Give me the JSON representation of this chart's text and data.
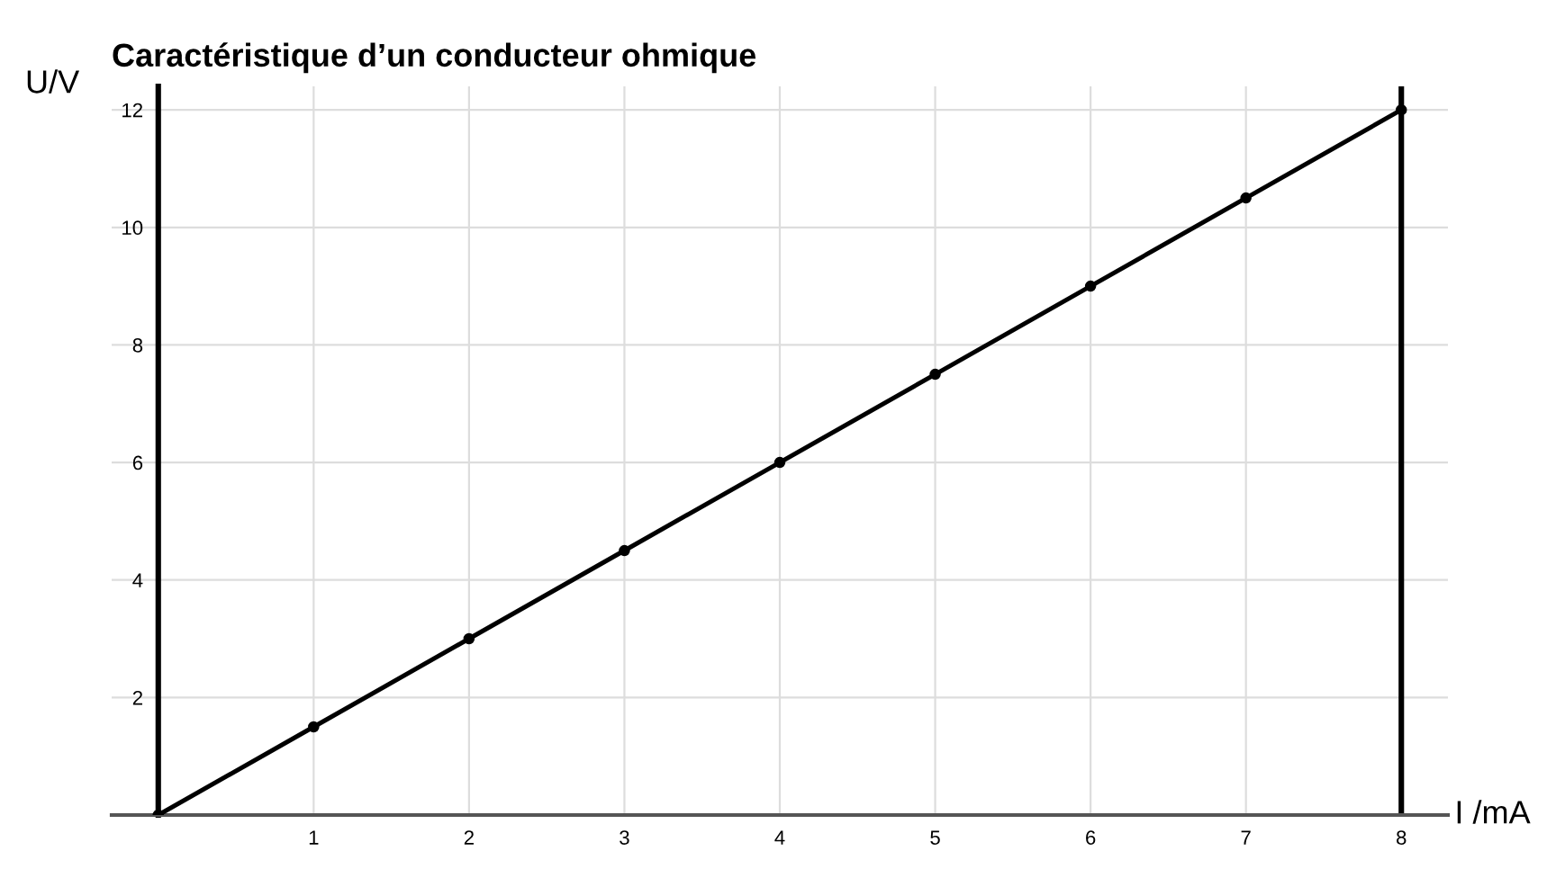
{
  "chart_data": {
    "type": "line",
    "title": "Caractéristique d’un conducteur ohmique",
    "xlabel": "I /mA",
    "ylabel": "U/V",
    "x": [
      0,
      1,
      2,
      3,
      4,
      5,
      6,
      7,
      8
    ],
    "series": [
      {
        "color": "#000000",
        "values": [
          0,
          1.5,
          3,
          4.5,
          6,
          7.5,
          9,
          10.5,
          12
        ]
      }
    ],
    "xlim": [
      -0.3,
      8.3
    ],
    "ylim": [
      0,
      12.4
    ],
    "xticks": [
      1,
      2,
      3,
      4,
      5,
      6,
      7,
      8
    ],
    "yticks": [
      2,
      4,
      6,
      8,
      10,
      12
    ],
    "ref_lines": [
      {
        "axis": "x",
        "value": 8,
        "color": "#000000"
      }
    ],
    "grid": true,
    "marker": "circle",
    "line_style": "solid",
    "legend": false
  }
}
